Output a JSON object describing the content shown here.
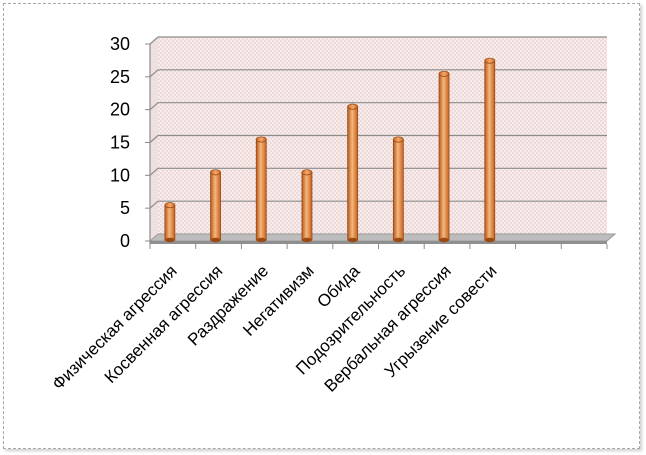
{
  "chart_data": {
    "type": "bar",
    "title": "",
    "xlabel": "",
    "ylabel": "",
    "categories": [
      "Физическая агрессия",
      "Косвенная агрессия",
      "Раздражение",
      "Негативизм",
      "Обида",
      "Подозрительность",
      "Вербальная агрессия",
      "Угрызение совести"
    ],
    "values": [
      5,
      10,
      15,
      10,
      20,
      15,
      25,
      27
    ],
    "ylim": [
      0,
      30
    ],
    "yticks": [
      0,
      5,
      10,
      15,
      20,
      25,
      30
    ],
    "grid": true,
    "legend": "none",
    "bar_color": "#d9742a",
    "bar_highlight": "#f6b77c",
    "bar_shadow": "#9c4a12",
    "plot_background": "#f3e4e4",
    "gridline_color": "#8c8c8c"
  }
}
